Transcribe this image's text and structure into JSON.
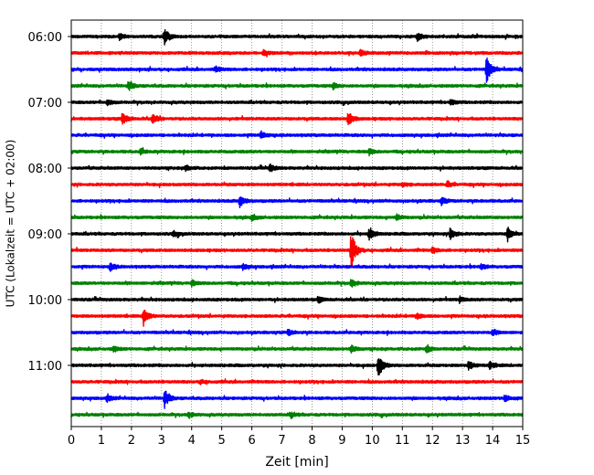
{
  "chart_data": {
    "type": "line",
    "title": "",
    "xlabel": "Zeit  [min]",
    "ylabel": "UTC (Lokalzeit = UTC + 02:00)",
    "xlim": [
      0,
      15
    ],
    "x_ticks": [
      0,
      1,
      2,
      3,
      4,
      5,
      6,
      7,
      8,
      9,
      10,
      11,
      12,
      13,
      14,
      15
    ],
    "x_tick_labels": [
      "0",
      "1",
      "2",
      "3",
      "4",
      "5",
      "6",
      "7",
      "8",
      "9",
      "10",
      "11",
      "12",
      "13",
      "14",
      "15"
    ],
    "y_tick_labels": [
      "06:00",
      "07:00",
      "08:00",
      "09:00",
      "10:00",
      "11:00"
    ],
    "y_tick_rows": [
      0,
      4,
      8,
      12,
      16,
      20
    ],
    "vertical_grid": true,
    "grid_style": "dotted",
    "trace_start": "06:00",
    "trace_interval_min": 15,
    "trace_colors": [
      "#000000",
      "#ff0000",
      "#0000ff",
      "#008000"
    ],
    "traces": [
      {
        "start": "06:00",
        "color": "#000000",
        "events": [
          {
            "t": 3.1,
            "amp": 9
          },
          {
            "t": 11.5,
            "amp": 4
          },
          {
            "t": 1.6,
            "amp": 3
          }
        ]
      },
      {
        "start": "06:15",
        "color": "#ff0000",
        "events": [
          {
            "t": 6.4,
            "amp": 3
          },
          {
            "t": 9.6,
            "amp": 3
          }
        ]
      },
      {
        "start": "06:30",
        "color": "#0000ff",
        "events": [
          {
            "t": 13.8,
            "amp": 15
          },
          {
            "t": 4.8,
            "amp": 3
          }
        ]
      },
      {
        "start": "06:45",
        "color": "#008000",
        "events": [
          {
            "t": 1.9,
            "amp": 5
          },
          {
            "t": 8.7,
            "amp": 3
          }
        ]
      },
      {
        "start": "07:00",
        "color": "#000000",
        "events": [
          {
            "t": 12.6,
            "amp": 3
          },
          {
            "t": 1.2,
            "amp": 3
          }
        ]
      },
      {
        "start": "07:15",
        "color": "#ff0000",
        "events": [
          {
            "t": 1.7,
            "amp": 7
          },
          {
            "t": 2.7,
            "amp": 6
          },
          {
            "t": 9.2,
            "amp": 8
          }
        ]
      },
      {
        "start": "07:30",
        "color": "#0000ff",
        "events": [
          {
            "t": 6.3,
            "amp": 4
          }
        ]
      },
      {
        "start": "07:45",
        "color": "#008000",
        "events": [
          {
            "t": 2.3,
            "amp": 3
          },
          {
            "t": 9.9,
            "amp": 3
          }
        ]
      },
      {
        "start": "08:00",
        "color": "#000000",
        "events": [
          {
            "t": 6.6,
            "amp": 4
          },
          {
            "t": 3.8,
            "amp": 3
          }
        ]
      },
      {
        "start": "08:15",
        "color": "#ff0000",
        "events": [
          {
            "t": 12.5,
            "amp": 3
          },
          {
            "t": 11.0,
            "amp": 2
          }
        ]
      },
      {
        "start": "08:30",
        "color": "#0000ff",
        "events": [
          {
            "t": 5.6,
            "amp": 6
          },
          {
            "t": 12.3,
            "amp": 4
          }
        ]
      },
      {
        "start": "08:45",
        "color": "#008000",
        "events": [
          {
            "t": 6.0,
            "amp": 3
          },
          {
            "t": 10.8,
            "amp": 3
          }
        ]
      },
      {
        "start": "09:00",
        "color": "#000000",
        "events": [
          {
            "t": 9.9,
            "amp": 7
          },
          {
            "t": 12.6,
            "amp": 7
          },
          {
            "t": 14.5,
            "amp": 8
          },
          {
            "t": 3.4,
            "amp": 3
          }
        ]
      },
      {
        "start": "09:15",
        "color": "#ff0000",
        "events": [
          {
            "t": 9.3,
            "amp": 22
          },
          {
            "t": 12.0,
            "amp": 3
          }
        ]
      },
      {
        "start": "09:30",
        "color": "#0000ff",
        "events": [
          {
            "t": 1.3,
            "amp": 4
          },
          {
            "t": 5.7,
            "amp": 3
          },
          {
            "t": 13.6,
            "amp": 3
          }
        ]
      },
      {
        "start": "09:45",
        "color": "#008000",
        "events": [
          {
            "t": 9.3,
            "amp": 4
          },
          {
            "t": 4.0,
            "amp": 3
          }
        ]
      },
      {
        "start": "10:00",
        "color": "#000000",
        "events": [
          {
            "t": 8.2,
            "amp": 3
          },
          {
            "t": 12.9,
            "amp": 3
          }
        ]
      },
      {
        "start": "10:15",
        "color": "#ff0000",
        "events": [
          {
            "t": 2.4,
            "amp": 10
          },
          {
            "t": 11.5,
            "amp": 3
          }
        ]
      },
      {
        "start": "10:30",
        "color": "#0000ff",
        "events": [
          {
            "t": 7.2,
            "amp": 3
          },
          {
            "t": 14.0,
            "amp": 3
          }
        ]
      },
      {
        "start": "10:45",
        "color": "#008000",
        "events": [
          {
            "t": 9.3,
            "amp": 4
          },
          {
            "t": 11.8,
            "amp": 4
          },
          {
            "t": 1.4,
            "amp": 3
          }
        ]
      },
      {
        "start": "11:00",
        "color": "#000000",
        "events": [
          {
            "t": 10.2,
            "amp": 14
          },
          {
            "t": 13.2,
            "amp": 5
          },
          {
            "t": 13.9,
            "amp": 4
          }
        ]
      },
      {
        "start": "11:15",
        "color": "#ff0000",
        "events": [
          {
            "t": 4.3,
            "amp": 2
          }
        ]
      },
      {
        "start": "11:30",
        "color": "#0000ff",
        "events": [
          {
            "t": 3.1,
            "amp": 10
          },
          {
            "t": 14.4,
            "amp": 4
          },
          {
            "t": 1.2,
            "amp": 3
          }
        ]
      },
      {
        "start": "11:45",
        "color": "#008000",
        "events": [
          {
            "t": 3.9,
            "amp": 3
          },
          {
            "t": 7.3,
            "amp": 3
          }
        ]
      }
    ]
  }
}
